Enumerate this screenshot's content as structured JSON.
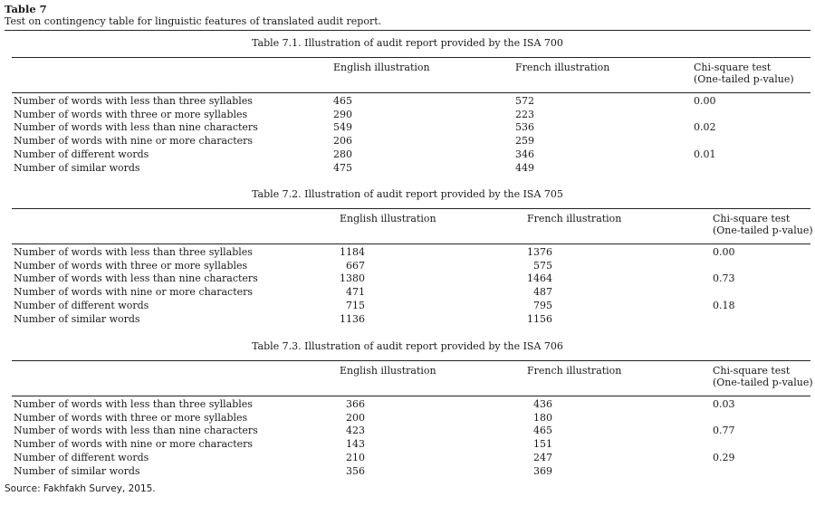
{
  "table_label": "Table 7",
  "table_caption": "Test on contingency table for linguistic features of translated audit report.",
  "source": "Source: Fakhfakh Survey, 2015.",
  "subtables": [
    {
      "title": "Table 7.1. Illustration of audit report provided by the ISA 700",
      "headers": {
        "english": "English illustration",
        "french": "French illustration",
        "chi_line1": "Chi-square test",
        "chi_line2": "(One-tailed p-value)"
      },
      "rows": [
        {
          "label": "Number of words with less than three syllables",
          "english": "465",
          "french": "572",
          "chi": "0.00"
        },
        {
          "label": "Number of words with three or more syllables",
          "english": "290",
          "french": "223",
          "chi": ""
        },
        {
          "label": "Number of words with less than nine characters",
          "english": "549",
          "french": "536",
          "chi": "0.02"
        },
        {
          "label": "Number of words with nine or more characters",
          "english": "206",
          "french": "259",
          "chi": ""
        },
        {
          "label": "Number of different words",
          "english": "280",
          "french": "346",
          "chi": "0.01"
        },
        {
          "label": "Number of similar words",
          "english": "475",
          "french": "449",
          "chi": ""
        }
      ]
    },
    {
      "title": "Table 7.2. Illustration of audit report provided by the ISA 705",
      "headers": {
        "english": "English illustration",
        "french": "French illustration",
        "chi_line1": "Chi-square test",
        "chi_line2": "(One-tailed p-value)"
      },
      "rows": [
        {
          "label": "Number of words with less than three syllables",
          "english": "1184",
          "french": "1376",
          "chi": "0.00"
        },
        {
          "label": "Number of words with three or more syllables",
          "english": "667",
          "french": "575",
          "chi": ""
        },
        {
          "label": "Number of words with less than nine characters",
          "english": "1380",
          "french": "1464",
          "chi": "0.73"
        },
        {
          "label": "Number of words with nine or more characters",
          "english": "471",
          "french": "487",
          "chi": ""
        },
        {
          "label": "Number of different words",
          "english": "715",
          "french": "795",
          "chi": "0.18"
        },
        {
          "label": "Number of similar words",
          "english": "1136",
          "french": "1156",
          "chi": ""
        }
      ]
    },
    {
      "title": "Table 7.3. Illustration of audit report provided by the ISA 706",
      "headers": {
        "english": "English illustration",
        "french": "French illustration",
        "chi_line1": "Chi-square test",
        "chi_line2": "(One-tailed p-value)"
      },
      "rows": [
        {
          "label": "Number of words with less than three syllables",
          "english": "366",
          "french": "436",
          "chi": "0.03"
        },
        {
          "label": "Number of words with three or more syllables",
          "english": "200",
          "french": "180",
          "chi": ""
        },
        {
          "label": "Number of words with less than nine characters",
          "english": "423",
          "french": "465",
          "chi": "0.77"
        },
        {
          "label": "Number of words with nine or more characters",
          "english": "143",
          "french": "151",
          "chi": ""
        },
        {
          "label": "Number of different words",
          "english": "210",
          "french": "247",
          "chi": "0.29"
        },
        {
          "label": "Number of similar words",
          "english": "356",
          "french": "369",
          "chi": ""
        }
      ]
    }
  ]
}
